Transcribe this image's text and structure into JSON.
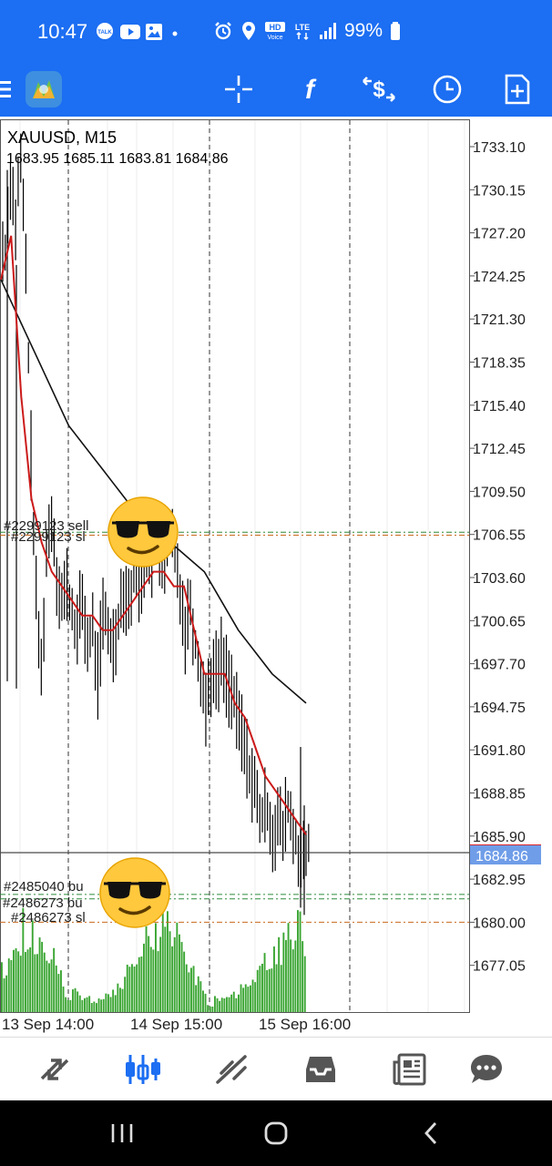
{
  "status_bar": {
    "time": "10:47",
    "battery_text": "99%",
    "icons_left": [
      "talk-icon",
      "youtube-icon",
      "gallery-icon",
      "dot-icon"
    ],
    "icons_right": [
      "alarm-icon",
      "location-icon",
      "hd-voice-icon",
      "lte-icon",
      "signal-icon",
      "battery-icon"
    ]
  },
  "toolbar": {
    "icons": [
      "menu-icon",
      "metatrader-logo",
      "crosshair-icon",
      "function-icon",
      "trade-dollar-icon",
      "clock-icon",
      "new-document-icon"
    ]
  },
  "chart": {
    "symbol_label": "XAUUSD, M15",
    "ohlc_label": "1683.95 1685.11 1683.81 1684.86",
    "current_price_label": "1684.86",
    "price_ticks": [
      "1733.10",
      "1730.15",
      "1727.20",
      "1724.25",
      "1721.30",
      "1718.35",
      "1715.40",
      "1712.45",
      "1709.50",
      "1706.55",
      "1703.60",
      "1700.65",
      "1697.70",
      "1694.75",
      "1691.80",
      "1688.85",
      "1685.90",
      "1682.95",
      "1680.00",
      "1677.05"
    ],
    "time_labels": [
      "13 Sep 14:00",
      "14 Sep 15:00",
      "15 Sep 16:00"
    ],
    "order_labels": {
      "sell_top": "#2299123 sell",
      "sl_top": "#2299123 sl",
      "buy_1": "#2485040 bu",
      "buy_2": "#2486273 bu",
      "sl_bottom": "#2486273 sl"
    }
  },
  "chart_data": {
    "type": "candlestick",
    "symbol": "XAUUSD",
    "timeframe": "M15",
    "ohlc": {
      "open": 1683.95,
      "high": 1685.11,
      "low": 1683.81,
      "close": 1684.86
    },
    "current_price": 1684.86,
    "y_ticks": [
      1733.1,
      1730.15,
      1727.2,
      1724.25,
      1721.3,
      1718.35,
      1715.4,
      1712.45,
      1709.5,
      1706.55,
      1703.6,
      1700.65,
      1697.7,
      1694.75,
      1691.8,
      1688.85,
      1685.9,
      1682.95,
      1680.0,
      1677.05
    ],
    "x_labels": [
      "13 Sep 14:00",
      "14 Sep 15:00",
      "15 Sep 16:00"
    ],
    "price_path": [
      1726,
      1731,
      1728,
      1732,
      1725,
      1712,
      1702,
      1697,
      1705,
      1708,
      1704,
      1702,
      1703,
      1701,
      1700,
      1702,
      1699,
      1700,
      1697,
      1701,
      1700,
      1699,
      1701,
      1703,
      1702,
      1704,
      1703,
      1705,
      1704,
      1706,
      1705,
      1704,
      1707,
      1705,
      1703,
      1700,
      1702,
      1699,
      1697,
      1695,
      1697,
      1697,
      1698,
      1697,
      1696,
      1694,
      1693,
      1691,
      1690,
      1688,
      1687,
      1688,
      1686,
      1687,
      1686,
      1688,
      1686,
      1685,
      1684,
      1685
    ],
    "fast_ma": [
      1724,
      1727,
      1716,
      1709,
      1706,
      1704,
      1703,
      1702,
      1701,
      1701,
      1700,
      1700,
      1701,
      1702,
      1703,
      1704,
      1704,
      1703,
      1703,
      1700,
      1697,
      1697,
      1697,
      1695,
      1694,
      1692,
      1690,
      1689,
      1688,
      1687,
      1686
    ],
    "slow_ma": [
      1724,
      1719,
      1714,
      1711,
      1708,
      1706,
      1704,
      1700,
      1697,
      1695
    ],
    "order_lines": [
      {
        "label": "#2299123 sell",
        "price": 1706.7
      },
      {
        "label": "#2299123 sl",
        "price": 1706.5
      },
      {
        "label": "#2485040 bu",
        "price": 1681.9
      },
      {
        "label": "#2486273 bu",
        "price": 1681.6
      },
      {
        "label": "#2486273 sl",
        "price": 1680.0
      }
    ]
  },
  "bottom_nav": {
    "icons": [
      "quotes-icon",
      "chart-icon",
      "trade-icon",
      "history-icon",
      "news-icon",
      "messages-icon"
    ]
  },
  "system_nav": {
    "icons": [
      "recents-icon",
      "home-icon",
      "back-icon"
    ]
  },
  "colors": {
    "accent": "#1c6ef2",
    "candles": "#000000",
    "fast_ma": "#cc1a1a",
    "slow_ma": "#111111",
    "volume": "#3aa532",
    "price_tag": "#6f9de8"
  }
}
